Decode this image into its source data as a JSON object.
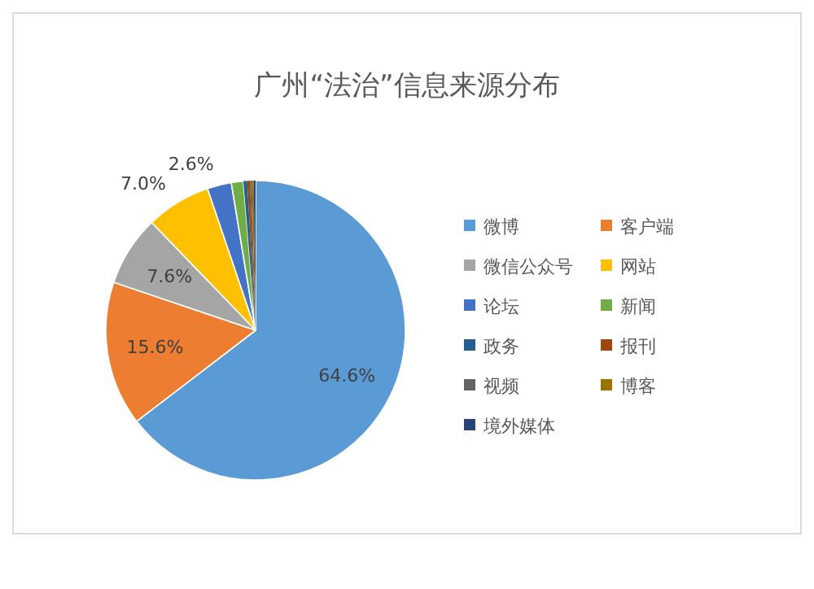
{
  "chart_data": {
    "type": "pie",
    "title": "广州“法治”信息来源分布",
    "categories": [
      "微博",
      "客户端",
      "微信公众号",
      "网站",
      "论坛",
      "新闻",
      "政务",
      "报刊",
      "视频",
      "博客",
      "境外媒体"
    ],
    "values": [
      64.6,
      15.6,
      7.6,
      7.0,
      2.6,
      1.3,
      0.4,
      0.3,
      0.2,
      0.2,
      0.2
    ],
    "colors": [
      "#5b9bd5",
      "#ed7d31",
      "#a5a5a5",
      "#ffc000",
      "#4472c4",
      "#70ad47",
      "#255e91",
      "#9e480e",
      "#636363",
      "#997300",
      "#264478"
    ],
    "value_labels": [
      "64.6%",
      "15.6%",
      "7.6%",
      "7.0%",
      "2.6%",
      null,
      null,
      null,
      null,
      null,
      null
    ],
    "legend": "right"
  }
}
